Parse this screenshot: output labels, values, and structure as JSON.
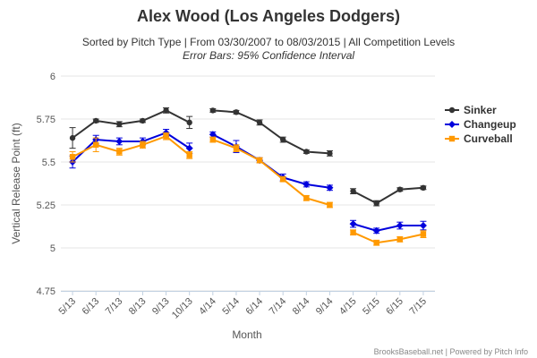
{
  "chart_data": {
    "type": "line",
    "title": "Alex Wood (Los Angeles Dodgers)",
    "subtitle": "Sorted by Pitch Type | From 03/30/2007 to 08/03/2015 | All Competition Levels",
    "subtitle2": "Error Bars: 95% Confidence Interval",
    "xlabel": "Month",
    "ylabel": "Vertical Release Point (ft)",
    "ylim": [
      4.75,
      6
    ],
    "yticks": [
      "4.75",
      "5",
      "5.25",
      "5.5",
      "5.75",
      "6"
    ],
    "categories": [
      "5/13",
      "6/13",
      "7/13",
      "8/13",
      "9/13",
      "10/13",
      "4/14",
      "5/14",
      "6/14",
      "7/14",
      "8/14",
      "9/14",
      "4/15",
      "5/15",
      "6/15",
      "7/15"
    ],
    "segments": [
      [
        0,
        5
      ],
      [
        6,
        11
      ],
      [
        12,
        15
      ]
    ],
    "legend_position": "right",
    "series": [
      {
        "name": "Sinker",
        "color": "#333333",
        "marker": "circle",
        "values": [
          5.64,
          5.74,
          5.72,
          5.74,
          5.8,
          5.73,
          5.8,
          5.79,
          5.73,
          5.63,
          5.56,
          5.55,
          5.33,
          5.26,
          5.34,
          5.35
        ],
        "errors": [
          0.06,
          0.01,
          0.015,
          0.01,
          0.015,
          0.035,
          0.01,
          0.01,
          0.015,
          0.015,
          0.01,
          0.015,
          0.015,
          0.015,
          0.01,
          0.01
        ]
      },
      {
        "name": "Changeup",
        "color": "#0000dd",
        "marker": "diamond",
        "values": [
          5.5,
          5.63,
          5.62,
          5.62,
          5.67,
          5.58,
          5.66,
          5.59,
          5.51,
          5.41,
          5.37,
          5.35,
          5.14,
          5.1,
          5.13,
          5.13
        ],
        "errors": [
          0.035,
          0.025,
          0.02,
          0.02,
          0.02,
          0.03,
          0.015,
          0.035,
          0.015,
          0.02,
          0.015,
          0.015,
          0.02,
          0.015,
          0.02,
          0.025
        ]
      },
      {
        "name": "Curveball",
        "color": "#ff9900",
        "marker": "square",
        "values": [
          5.53,
          5.6,
          5.56,
          5.6,
          5.65,
          5.54,
          5.63,
          5.58,
          5.51,
          5.4,
          5.29,
          5.25,
          5.09,
          5.03,
          5.05,
          5.08
        ],
        "errors": [
          0.03,
          0.04,
          0.02,
          0.02,
          0.02,
          0.02,
          0.015,
          0.02,
          0.015,
          0.015,
          0.015,
          0.015,
          0.015,
          0.015,
          0.015,
          0.02
        ]
      }
    ]
  },
  "credit": "BrooksBaseball.net | Powered by Pitch Info"
}
